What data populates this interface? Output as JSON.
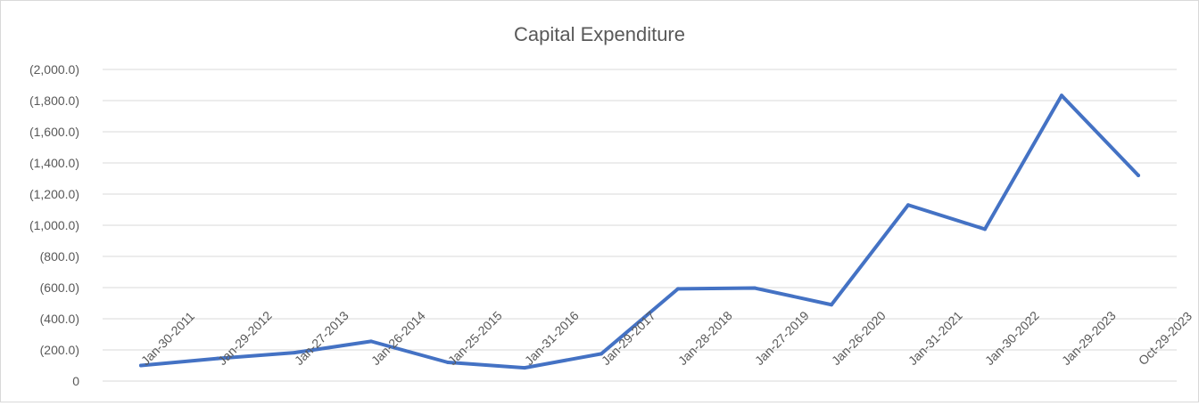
{
  "chart_data": {
    "type": "line",
    "title": "Capital Expenditure",
    "xlabel": "",
    "ylabel": "",
    "ylim": [
      0,
      2000
    ],
    "y_ticks": [
      0,
      200,
      400,
      600,
      800,
      1000,
      1200,
      1400,
      1600,
      1800,
      2000
    ],
    "y_tick_labels": [
      "0",
      "(200.0)",
      "(400.0)",
      "(600.0)",
      "(800.0)",
      "(1,000.0)",
      "(1,200.0)",
      "(1,400.0)",
      "(1,600.0)",
      "(1,800.0)",
      "(2,000.0)"
    ],
    "grid": true,
    "legend": "none",
    "categories": [
      "Jan-30-2011",
      "Jan-29-2012",
      "Jan-27-2013",
      "Jan-26-2014",
      "Jan-25-2015",
      "Jan-31-2016",
      "Jan-29-2017",
      "Jan-28-2018",
      "Jan-27-2019",
      "Jan-26-2020",
      "Jan-31-2021",
      "Jan-30-2022",
      "Jan-29-2023",
      "Oct-29-2023"
    ],
    "series": [
      {
        "values": [
          100,
          145,
          182,
          255,
          120,
          85,
          175,
          592,
          597,
          490,
          1130,
          975,
          1833,
          1320
        ],
        "color": "#4472c4"
      }
    ]
  }
}
